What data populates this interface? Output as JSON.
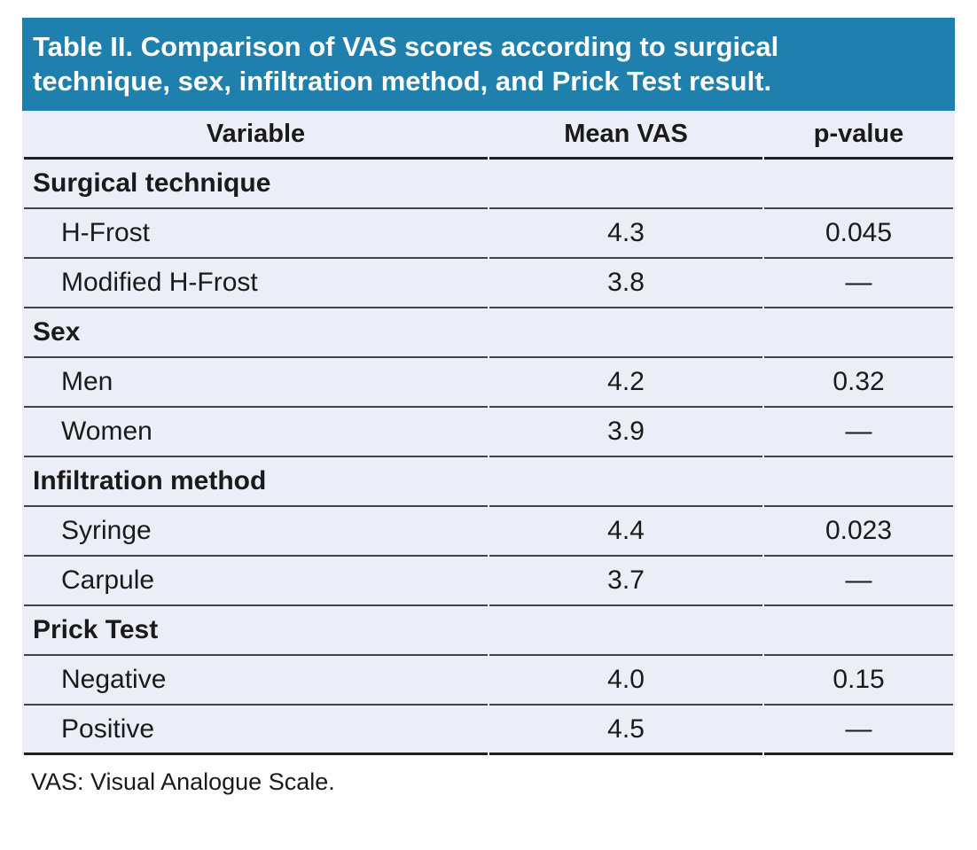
{
  "title": {
    "lines": [
      "Table II. Comparison of VAS scores according to surgical",
      "technique, sex, infiltration method, and Prick Test result."
    ]
  },
  "columns": [
    "Variable",
    "Mean VAS",
    "p-value"
  ],
  "sections": [
    {
      "header": "Surgical technique",
      "rows": [
        {
          "label": "H-Frost",
          "mean_vas": "4.3",
          "p_value": "0.045"
        },
        {
          "label": "Modified H-Frost",
          "mean_vas": "3.8",
          "p_value": "—"
        }
      ]
    },
    {
      "header": "Sex",
      "rows": [
        {
          "label": "Men",
          "mean_vas": "4.2",
          "p_value": "0.32"
        },
        {
          "label": "Women",
          "mean_vas": "3.9",
          "p_value": "—"
        }
      ]
    },
    {
      "header": "Infiltration method",
      "rows": [
        {
          "label": "Syringe",
          "mean_vas": "4.4",
          "p_value": "0.023"
        },
        {
          "label": "Carpule",
          "mean_vas": "3.7",
          "p_value": "—"
        }
      ]
    },
    {
      "header": "Prick Test",
      "rows": [
        {
          "label": "Negative",
          "mean_vas": "4.0",
          "p_value": "0.15"
        },
        {
          "label": "Positive",
          "mean_vas": "4.5",
          "p_value": "—"
        }
      ]
    }
  ],
  "footnote": "VAS: Visual Analogue Scale.",
  "colors": {
    "title_bg": "#1F80AD",
    "title_text": "#FFFFFF",
    "row_bg": "#EBEEF6",
    "row_line": "#424242",
    "strong_line": "#1F1F1F",
    "text": "#1A1A1A"
  }
}
